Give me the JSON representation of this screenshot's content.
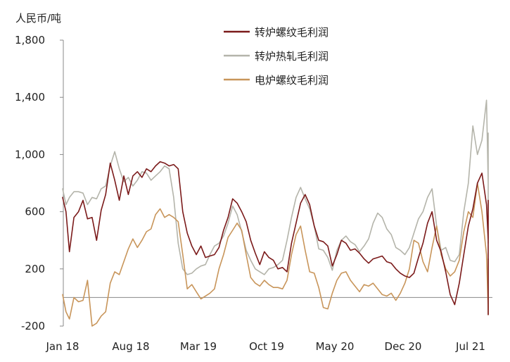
{
  "chart_data": {
    "type": "line",
    "title": "",
    "ylabel": "人民币/吨",
    "xlabel": "",
    "ylim": [
      -200,
      1800
    ],
    "yticks": [
      -200,
      200,
      600,
      1000,
      1400,
      1800
    ],
    "ytick_labels": [
      "-200",
      "200",
      "600",
      "1,000",
      "1,400",
      "1,800"
    ],
    "xticks": [
      "Jan 18",
      "Aug 18",
      "Mar 19",
      "Oct 19",
      "May 20",
      "Dec 20",
      "Jul 21"
    ],
    "legend_position": "top-center",
    "grid": false,
    "series": [
      {
        "name": "转炉螺纹毛利润",
        "color": "#7b1a1a",
        "points": [
          [
            0,
            700
          ],
          [
            0.15,
            600
          ],
          [
            0.3,
            320
          ],
          [
            0.5,
            560
          ],
          [
            0.7,
            600
          ],
          [
            0.9,
            680
          ],
          [
            1.1,
            550
          ],
          [
            1.3,
            560
          ],
          [
            1.5,
            400
          ],
          [
            1.7,
            610
          ],
          [
            1.9,
            720
          ],
          [
            2.1,
            940
          ],
          [
            2.3,
            820
          ],
          [
            2.5,
            680
          ],
          [
            2.7,
            850
          ],
          [
            2.9,
            720
          ],
          [
            3.1,
            850
          ],
          [
            3.3,
            880
          ],
          [
            3.5,
            840
          ],
          [
            3.7,
            900
          ],
          [
            3.9,
            880
          ],
          [
            4.1,
            920
          ],
          [
            4.3,
            950
          ],
          [
            4.5,
            940
          ],
          [
            4.7,
            920
          ],
          [
            4.9,
            930
          ],
          [
            5.1,
            900
          ],
          [
            5.3,
            600
          ],
          [
            5.5,
            450
          ],
          [
            5.7,
            360
          ],
          [
            5.9,
            300
          ],
          [
            6.1,
            360
          ],
          [
            6.3,
            280
          ],
          [
            6.5,
            290
          ],
          [
            6.7,
            300
          ],
          [
            6.9,
            350
          ],
          [
            7.1,
            470
          ],
          [
            7.3,
            560
          ],
          [
            7.5,
            690
          ],
          [
            7.7,
            660
          ],
          [
            7.9,
            600
          ],
          [
            8.1,
            530
          ],
          [
            8.3,
            400
          ],
          [
            8.5,
            310
          ],
          [
            8.7,
            230
          ],
          [
            8.9,
            320
          ],
          [
            9.1,
            280
          ],
          [
            9.3,
            260
          ],
          [
            9.5,
            200
          ],
          [
            9.7,
            210
          ],
          [
            9.9,
            180
          ],
          [
            10.1,
            380
          ],
          [
            10.3,
            520
          ],
          [
            10.5,
            660
          ],
          [
            10.7,
            720
          ],
          [
            10.9,
            650
          ],
          [
            11.1,
            500
          ],
          [
            11.3,
            400
          ],
          [
            11.5,
            390
          ],
          [
            11.7,
            360
          ],
          [
            11.9,
            220
          ],
          [
            12.1,
            300
          ],
          [
            12.3,
            400
          ],
          [
            12.5,
            380
          ],
          [
            12.7,
            330
          ],
          [
            12.9,
            340
          ],
          [
            13.1,
            310
          ],
          [
            13.3,
            270
          ],
          [
            13.5,
            240
          ],
          [
            13.7,
            270
          ],
          [
            13.9,
            280
          ],
          [
            14.1,
            290
          ],
          [
            14.3,
            250
          ],
          [
            14.5,
            240
          ],
          [
            14.7,
            200
          ],
          [
            14.9,
            170
          ],
          [
            15.1,
            150
          ],
          [
            15.3,
            140
          ],
          [
            15.5,
            170
          ],
          [
            15.7,
            280
          ],
          [
            15.9,
            380
          ],
          [
            16.1,
            520
          ],
          [
            16.3,
            600
          ],
          [
            16.5,
            400
          ],
          [
            16.7,
            320
          ],
          [
            16.9,
            180
          ],
          [
            17.1,
            20
          ],
          [
            17.3,
            -50
          ],
          [
            17.5,
            100
          ],
          [
            17.7,
            300
          ],
          [
            17.9,
            500
          ],
          [
            18.1,
            620
          ],
          [
            18.3,
            800
          ],
          [
            18.5,
            870
          ],
          [
            18.7,
            650
          ],
          [
            18.9,
            400
          ],
          [
            19.1,
            100
          ],
          [
            19.3,
            -80
          ],
          [
            19.5,
            -120
          ],
          [
            19.7,
            200
          ],
          [
            19.9,
            450
          ],
          [
            20.1,
            650
          ],
          [
            20.3,
            680
          ],
          [
            20.5,
            600
          ]
        ]
      },
      {
        "name": "转炉热轧毛利润",
        "color": "#b4b4aa",
        "points": [
          [
            0,
            760
          ],
          [
            0.15,
            650
          ],
          [
            0.3,
            700
          ],
          [
            0.5,
            740
          ],
          [
            0.7,
            740
          ],
          [
            0.9,
            730
          ],
          [
            1.1,
            650
          ],
          [
            1.3,
            700
          ],
          [
            1.5,
            690
          ],
          [
            1.7,
            760
          ],
          [
            1.9,
            780
          ],
          [
            2.1,
            920
          ],
          [
            2.3,
            1020
          ],
          [
            2.5,
            900
          ],
          [
            2.7,
            810
          ],
          [
            2.9,
            840
          ],
          [
            3.1,
            780
          ],
          [
            3.3,
            820
          ],
          [
            3.5,
            880
          ],
          [
            3.7,
            870
          ],
          [
            3.9,
            820
          ],
          [
            4.1,
            850
          ],
          [
            4.3,
            880
          ],
          [
            4.5,
            920
          ],
          [
            4.7,
            900
          ],
          [
            4.9,
            700
          ],
          [
            5.1,
            380
          ],
          [
            5.3,
            200
          ],
          [
            5.5,
            160
          ],
          [
            5.7,
            170
          ],
          [
            5.9,
            200
          ],
          [
            6.1,
            220
          ],
          [
            6.3,
            230
          ],
          [
            6.5,
            300
          ],
          [
            6.7,
            360
          ],
          [
            6.9,
            380
          ],
          [
            7.1,
            430
          ],
          [
            7.3,
            520
          ],
          [
            7.5,
            640
          ],
          [
            7.7,
            580
          ],
          [
            7.9,
            460
          ],
          [
            8.1,
            330
          ],
          [
            8.3,
            260
          ],
          [
            8.5,
            200
          ],
          [
            8.7,
            180
          ],
          [
            8.9,
            160
          ],
          [
            9.1,
            200
          ],
          [
            9.3,
            210
          ],
          [
            9.5,
            230
          ],
          [
            9.7,
            260
          ],
          [
            9.9,
            400
          ],
          [
            10.1,
            560
          ],
          [
            10.3,
            700
          ],
          [
            10.5,
            770
          ],
          [
            10.7,
            690
          ],
          [
            10.9,
            620
          ],
          [
            11.1,
            500
          ],
          [
            11.3,
            340
          ],
          [
            11.5,
            330
          ],
          [
            11.7,
            280
          ],
          [
            11.9,
            190
          ],
          [
            12.1,
            330
          ],
          [
            12.3,
            400
          ],
          [
            12.5,
            430
          ],
          [
            12.7,
            390
          ],
          [
            12.9,
            370
          ],
          [
            13.1,
            320
          ],
          [
            13.3,
            360
          ],
          [
            13.5,
            410
          ],
          [
            13.7,
            520
          ],
          [
            13.9,
            590
          ],
          [
            14.1,
            560
          ],
          [
            14.3,
            480
          ],
          [
            14.5,
            440
          ],
          [
            14.7,
            350
          ],
          [
            14.9,
            330
          ],
          [
            15.1,
            300
          ],
          [
            15.3,
            350
          ],
          [
            15.5,
            450
          ],
          [
            15.7,
            550
          ],
          [
            15.9,
            600
          ],
          [
            16.1,
            700
          ],
          [
            16.3,
            760
          ],
          [
            16.5,
            500
          ],
          [
            16.7,
            330
          ],
          [
            16.9,
            350
          ],
          [
            17.1,
            260
          ],
          [
            17.3,
            250
          ],
          [
            17.5,
            300
          ],
          [
            17.7,
            600
          ],
          [
            17.9,
            800
          ],
          [
            18.1,
            1200
          ],
          [
            18.3,
            1000
          ],
          [
            18.5,
            1100
          ],
          [
            18.7,
            1380
          ],
          [
            18.9,
            800
          ],
          [
            19.1,
            700
          ],
          [
            19.3,
            750
          ],
          [
            19.5,
            500
          ],
          [
            19.7,
            380
          ],
          [
            19.9,
            700
          ],
          [
            20.1,
            1150
          ],
          [
            20.3,
            1000
          ],
          [
            20.5,
            900
          ]
        ]
      },
      {
        "name": "电炉螺纹毛利润",
        "color": "#c8955a",
        "points": [
          [
            0,
            20
          ],
          [
            0.15,
            -100
          ],
          [
            0.3,
            -150
          ],
          [
            0.5,
            0
          ],
          [
            0.7,
            -30
          ],
          [
            0.9,
            -20
          ],
          [
            1.1,
            120
          ],
          [
            1.3,
            -200
          ],
          [
            1.5,
            -180
          ],
          [
            1.7,
            -130
          ],
          [
            1.9,
            -100
          ],
          [
            2.1,
            100
          ],
          [
            2.3,
            180
          ],
          [
            2.5,
            160
          ],
          [
            2.7,
            250
          ],
          [
            2.9,
            340
          ],
          [
            3.1,
            410
          ],
          [
            3.3,
            350
          ],
          [
            3.5,
            400
          ],
          [
            3.7,
            460
          ],
          [
            3.9,
            480
          ],
          [
            4.1,
            580
          ],
          [
            4.3,
            620
          ],
          [
            4.5,
            560
          ],
          [
            4.7,
            580
          ],
          [
            4.9,
            560
          ],
          [
            5.1,
            530
          ],
          [
            5.3,
            300
          ],
          [
            5.5,
            60
          ],
          [
            5.7,
            90
          ],
          [
            5.9,
            40
          ],
          [
            6.1,
            -10
          ],
          [
            6.3,
            10
          ],
          [
            6.5,
            30
          ],
          [
            6.7,
            60
          ],
          [
            6.9,
            200
          ],
          [
            7.1,
            300
          ],
          [
            7.3,
            420
          ],
          [
            7.5,
            470
          ],
          [
            7.7,
            520
          ],
          [
            7.9,
            470
          ],
          [
            8.1,
            300
          ],
          [
            8.3,
            140
          ],
          [
            8.5,
            100
          ],
          [
            8.7,
            80
          ],
          [
            8.9,
            120
          ],
          [
            9.1,
            90
          ],
          [
            9.3,
            70
          ],
          [
            9.5,
            70
          ],
          [
            9.7,
            60
          ],
          [
            9.9,
            120
          ],
          [
            10.1,
            300
          ],
          [
            10.3,
            440
          ],
          [
            10.5,
            500
          ],
          [
            10.7,
            330
          ],
          [
            10.9,
            180
          ],
          [
            11.1,
            170
          ],
          [
            11.3,
            70
          ],
          [
            11.5,
            -70
          ],
          [
            11.7,
            -80
          ],
          [
            11.9,
            30
          ],
          [
            12.1,
            120
          ],
          [
            12.3,
            170
          ],
          [
            12.5,
            180
          ],
          [
            12.7,
            120
          ],
          [
            12.9,
            80
          ],
          [
            13.1,
            40
          ],
          [
            13.3,
            90
          ],
          [
            13.5,
            80
          ],
          [
            13.7,
            100
          ],
          [
            13.9,
            60
          ],
          [
            14.1,
            20
          ],
          [
            14.3,
            10
          ],
          [
            14.5,
            30
          ],
          [
            14.7,
            -20
          ],
          [
            14.9,
            30
          ],
          [
            15.1,
            100
          ],
          [
            15.3,
            200
          ],
          [
            15.5,
            400
          ],
          [
            15.7,
            380
          ],
          [
            15.9,
            250
          ],
          [
            16.1,
            180
          ],
          [
            16.3,
            350
          ],
          [
            16.5,
            500
          ],
          [
            16.7,
            300
          ],
          [
            16.9,
            200
          ],
          [
            17.1,
            150
          ],
          [
            17.3,
            180
          ],
          [
            17.5,
            260
          ],
          [
            17.7,
            460
          ],
          [
            17.9,
            600
          ],
          [
            18.1,
            560
          ],
          [
            18.3,
            800
          ],
          [
            18.5,
            600
          ],
          [
            18.7,
            300
          ],
          [
            18.9,
            -80
          ],
          [
            19.1,
            -40
          ],
          [
            19.3,
            60
          ],
          [
            19.5,
            90
          ],
          [
            19.7,
            -120
          ],
          [
            19.9,
            120
          ],
          [
            20.1,
            270
          ],
          [
            20.3,
            240
          ],
          [
            20.5,
            180
          ]
        ]
      }
    ]
  }
}
